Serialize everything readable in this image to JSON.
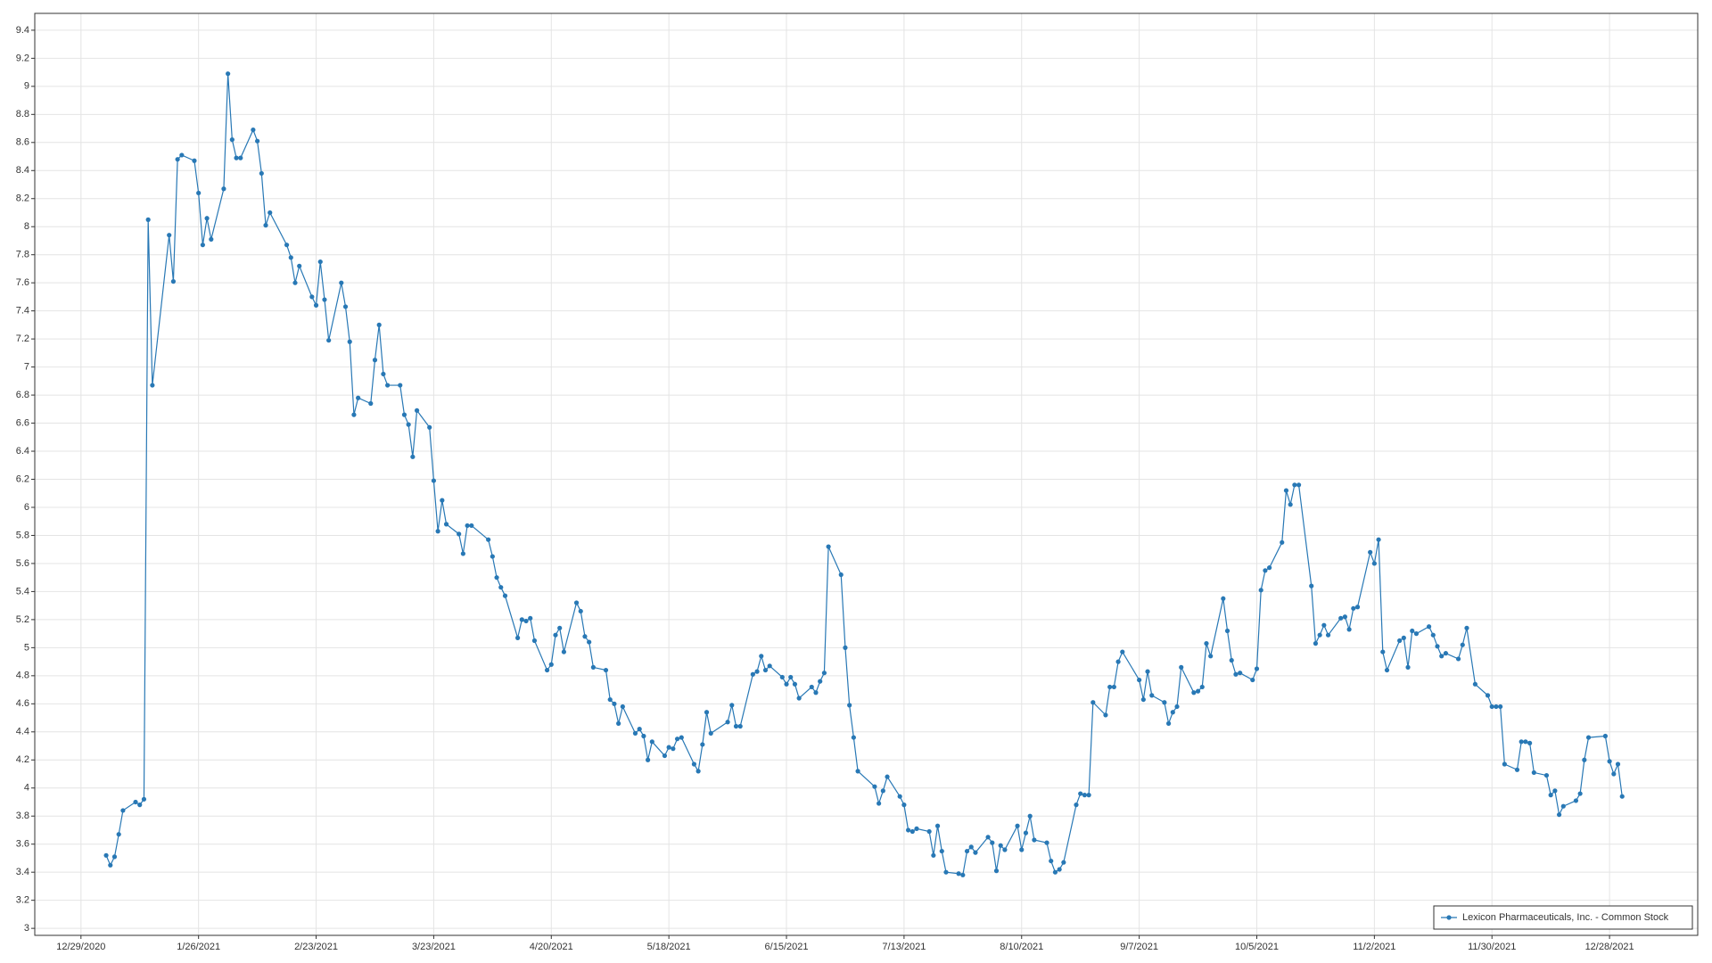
{
  "chart_data": {
    "type": "line",
    "x": [
      "1/4/2021",
      "1/5/2021",
      "1/6/2021",
      "1/7/2021",
      "1/8/2021",
      "1/11/2021",
      "1/12/2021",
      "1/13/2021",
      "1/14/2021",
      "1/15/2021",
      "1/19/2021",
      "1/20/2021",
      "1/21/2021",
      "1/22/2021",
      "1/25/2021",
      "1/26/2021",
      "1/27/2021",
      "1/28/2021",
      "1/29/2021",
      "2/1/2021",
      "2/2/2021",
      "2/3/2021",
      "2/4/2021",
      "2/5/2021",
      "2/8/2021",
      "2/9/2021",
      "2/10/2021",
      "2/11/2021",
      "2/12/2021",
      "2/16/2021",
      "2/17/2021",
      "2/18/2021",
      "2/19/2021",
      "2/22/2021",
      "2/23/2021",
      "2/24/2021",
      "2/25/2021",
      "2/26/2021",
      "3/1/2021",
      "3/2/2021",
      "3/3/2021",
      "3/4/2021",
      "3/5/2021",
      "3/8/2021",
      "3/9/2021",
      "3/10/2021",
      "3/11/2021",
      "3/12/2021",
      "3/15/2021",
      "3/16/2021",
      "3/17/2021",
      "3/18/2021",
      "3/19/2021",
      "3/22/2021",
      "3/23/2021",
      "3/24/2021",
      "3/25/2021",
      "3/26/2021",
      "3/29/2021",
      "3/30/2021",
      "3/31/2021",
      "4/1/2021",
      "4/5/2021",
      "4/6/2021",
      "4/7/2021",
      "4/8/2021",
      "4/9/2021",
      "4/12/2021",
      "4/13/2021",
      "4/14/2021",
      "4/15/2021",
      "4/16/2021",
      "4/19/2021",
      "4/20/2021",
      "4/21/2021",
      "4/22/2021",
      "4/23/2021",
      "4/26/2021",
      "4/27/2021",
      "4/28/2021",
      "4/29/2021",
      "4/30/2021",
      "5/3/2021",
      "5/4/2021",
      "5/5/2021",
      "5/6/2021",
      "5/7/2021",
      "5/10/2021",
      "5/11/2021",
      "5/12/2021",
      "5/13/2021",
      "5/14/2021",
      "5/17/2021",
      "5/18/2021",
      "5/19/2021",
      "5/20/2021",
      "5/21/2021",
      "5/24/2021",
      "5/25/2021",
      "5/26/2021",
      "5/27/2021",
      "5/28/2021",
      "6/1/2021",
      "6/2/2021",
      "6/3/2021",
      "6/4/2021",
      "6/7/2021",
      "6/8/2021",
      "6/9/2021",
      "6/10/2021",
      "6/11/2021",
      "6/14/2021",
      "6/15/2021",
      "6/16/2021",
      "6/17/2021",
      "6/18/2021",
      "6/21/2021",
      "6/22/2021",
      "6/23/2021",
      "6/24/2021",
      "6/25/2021",
      "6/28/2021",
      "6/29/2021",
      "6/30/2021",
      "7/1/2021",
      "7/2/2021",
      "7/6/2021",
      "7/7/2021",
      "7/8/2021",
      "7/9/2021",
      "7/12/2021",
      "7/13/2021",
      "7/14/2021",
      "7/15/2021",
      "7/16/2021",
      "7/19/2021",
      "7/20/2021",
      "7/21/2021",
      "7/22/2021",
      "7/23/2021",
      "7/26/2021",
      "7/27/2021",
      "7/28/2021",
      "7/29/2021",
      "7/30/2021",
      "8/2/2021",
      "8/3/2021",
      "8/4/2021",
      "8/5/2021",
      "8/6/2021",
      "8/9/2021",
      "8/10/2021",
      "8/11/2021",
      "8/12/2021",
      "8/13/2021",
      "8/16/2021",
      "8/17/2021",
      "8/18/2021",
      "8/19/2021",
      "8/20/2021",
      "8/23/2021",
      "8/24/2021",
      "8/25/2021",
      "8/26/2021",
      "8/27/2021",
      "8/30/2021",
      "8/31/2021",
      "9/1/2021",
      "9/2/2021",
      "9/3/2021",
      "9/7/2021",
      "9/8/2021",
      "9/9/2021",
      "9/10/2021",
      "9/13/2021",
      "9/14/2021",
      "9/15/2021",
      "9/16/2021",
      "9/17/2021",
      "9/20/2021",
      "9/21/2021",
      "9/22/2021",
      "9/23/2021",
      "9/24/2021",
      "9/27/2021",
      "9/28/2021",
      "9/29/2021",
      "9/30/2021",
      "10/1/2021",
      "10/4/2021",
      "10/5/2021",
      "10/6/2021",
      "10/7/2021",
      "10/8/2021",
      "10/11/2021",
      "10/12/2021",
      "10/13/2021",
      "10/14/2021",
      "10/15/2021",
      "10/18/2021",
      "10/19/2021",
      "10/20/2021",
      "10/21/2021",
      "10/22/2021",
      "10/25/2021",
      "10/26/2021",
      "10/27/2021",
      "10/28/2021",
      "10/29/2021",
      "11/1/2021",
      "11/2/2021",
      "11/3/2021",
      "11/4/2021",
      "11/5/2021",
      "11/8/2021",
      "11/9/2021",
      "11/10/2021",
      "11/11/2021",
      "11/12/2021",
      "11/15/2021",
      "11/16/2021",
      "11/17/2021",
      "11/18/2021",
      "11/19/2021",
      "11/22/2021",
      "11/23/2021",
      "11/24/2021",
      "11/26/2021",
      "11/29/2021",
      "11/30/2021",
      "12/1/2021",
      "12/2/2021",
      "12/3/2021",
      "12/6/2021",
      "12/7/2021",
      "12/8/2021",
      "12/9/2021",
      "12/10/2021",
      "12/13/2021",
      "12/14/2021",
      "12/15/2021",
      "12/16/2021",
      "12/17/2021",
      "12/20/2021",
      "12/21/2021",
      "12/22/2021",
      "12/23/2021",
      "12/27/2021",
      "12/28/2021",
      "12/29/2021",
      "12/30/2021",
      "12/31/2021"
    ],
    "series": [
      {
        "name": "Lexicon Pharmaceuticals, Inc. - Common Stock",
        "color": "#2878b5",
        "values": [
          3.52,
          3.45,
          3.51,
          3.67,
          3.84,
          3.9,
          3.88,
          3.92,
          8.05,
          6.87,
          7.94,
          7.61,
          8.48,
          8.51,
          8.47,
          8.24,
          7.87,
          8.06,
          7.91,
          8.27,
          9.09,
          8.62,
          8.49,
          8.49,
          8.69,
          8.61,
          8.38,
          8.01,
          8.1,
          7.87,
          7.78,
          7.6,
          7.72,
          7.5,
          7.44,
          7.75,
          7.48,
          7.19,
          7.6,
          7.43,
          7.18,
          6.66,
          6.78,
          6.74,
          7.05,
          7.3,
          6.95,
          6.87,
          6.87,
          6.66,
          6.59,
          6.36,
          6.69,
          6.57,
          6.19,
          5.83,
          6.05,
          5.88,
          5.81,
          5.67,
          5.87,
          5.87,
          5.77,
          5.65,
          5.5,
          5.43,
          5.37,
          5.07,
          5.2,
          5.19,
          5.21,
          5.05,
          4.84,
          4.88,
          5.09,
          5.14,
          4.97,
          5.32,
          5.26,
          5.08,
          5.04,
          4.86,
          4.84,
          4.63,
          4.6,
          4.46,
          4.58,
          4.39,
          4.42,
          4.37,
          4.2,
          4.33,
          4.23,
          4.29,
          4.28,
          4.35,
          4.36,
          4.17,
          4.12,
          4.31,
          4.54,
          4.39,
          4.47,
          4.59,
          4.44,
          4.44,
          4.81,
          4.83,
          4.94,
          4.84,
          4.87,
          4.79,
          4.74,
          4.79,
          4.74,
          4.64,
          4.72,
          4.68,
          4.76,
          4.82,
          5.72,
          5.52,
          5.0,
          4.59,
          4.36,
          4.12,
          4.01,
          3.89,
          3.98,
          4.08,
          3.94,
          3.88,
          3.7,
          3.69,
          3.71,
          3.69,
          3.52,
          3.73,
          3.55,
          3.4,
          3.39,
          3.38,
          3.55,
          3.58,
          3.54,
          3.65,
          3.61,
          3.41,
          3.59,
          3.56,
          3.73,
          3.56,
          3.68,
          3.8,
          3.63,
          3.61,
          3.48,
          3.4,
          3.42,
          3.47,
          3.88,
          3.96,
          3.95,
          3.95,
          4.61,
          4.52,
          4.72,
          4.72,
          4.9,
          4.97,
          4.77,
          4.63,
          4.83,
          4.66,
          4.61,
          4.46,
          4.54,
          4.58,
          4.86,
          4.68,
          4.69,
          4.72,
          5.03,
          4.94,
          5.35,
          5.12,
          4.91,
          4.81,
          4.82,
          4.77,
          4.85,
          5.41,
          5.55,
          5.57,
          5.75,
          6.12,
          6.02,
          6.16,
          6.16,
          5.44,
          5.03,
          5.09,
          5.16,
          5.09,
          5.21,
          5.22,
          5.13,
          5.28,
          5.29,
          5.68,
          5.6,
          5.77,
          4.97,
          4.84,
          5.05,
          5.07,
          4.86,
          5.12,
          5.1,
          5.15,
          5.09,
          5.01,
          4.94,
          4.96,
          4.92,
          5.02,
          5.14,
          4.74,
          4.66,
          4.58,
          4.58,
          4.58,
          4.17,
          4.13,
          4.33,
          4.33,
          4.32,
          4.11,
          4.09,
          3.95,
          3.98,
          3.81,
          3.87,
          3.91,
          3.96,
          4.2,
          4.36,
          4.37,
          4.19,
          4.1,
          4.17,
          3.94
        ]
      }
    ],
    "xlim": [
      "12/18/2020",
      "1/18/2022"
    ],
    "xticks": [
      "12/29/2020",
      "1/26/2021",
      "2/23/2021",
      "3/23/2021",
      "4/20/2021",
      "5/18/2021",
      "6/15/2021",
      "7/13/2021",
      "8/10/2021",
      "9/7/2021",
      "10/5/2021",
      "11/2/2021",
      "11/30/2021",
      "12/28/2021"
    ],
    "ylim": [
      2.95,
      9.52
    ],
    "yticks": [
      3,
      3.2,
      3.4,
      3.6,
      3.8,
      4,
      4.2,
      4.4,
      4.6,
      4.8,
      5,
      5.2,
      5.4,
      5.6,
      5.8,
      6,
      6.2,
      6.4,
      6.6,
      6.8,
      7,
      7.2,
      7.4,
      7.6,
      7.8,
      8,
      8.2,
      8.4,
      8.6,
      8.8,
      9,
      9.2,
      9.4
    ],
    "grid": true,
    "legend": "lower right"
  }
}
